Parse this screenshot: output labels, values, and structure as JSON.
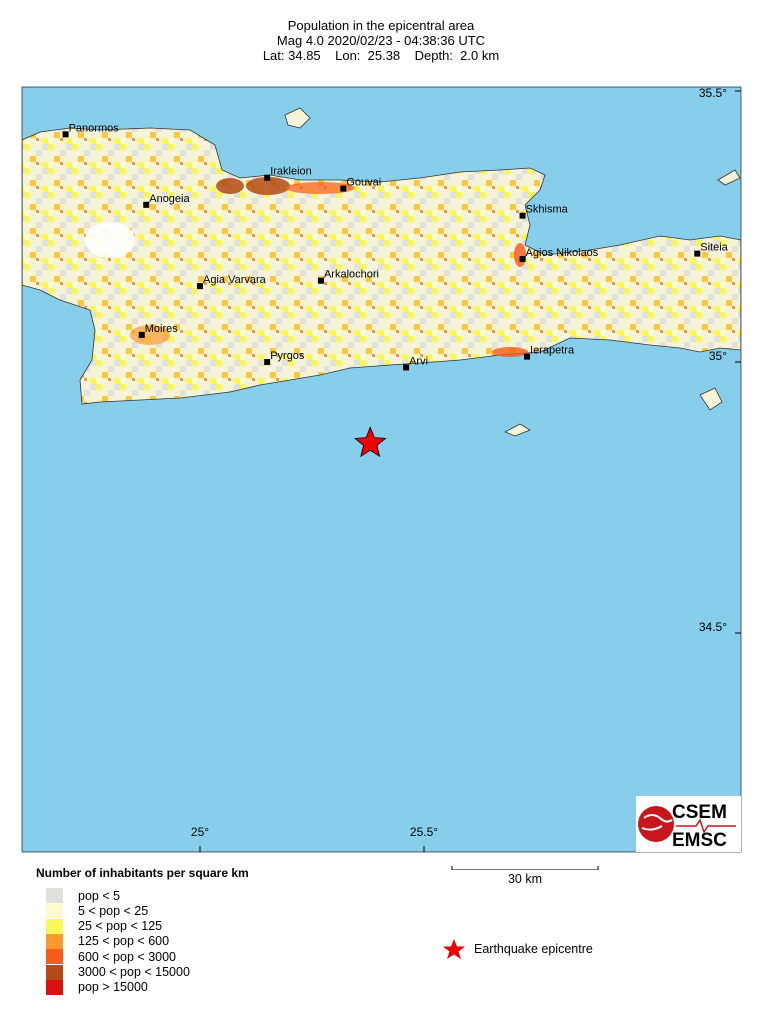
{
  "header": {
    "title": "Population in the epicentral area",
    "line2": "Mag 4.0  2020/02/23 - 04:38:36 UTC",
    "line3": "Lat: 34.85    Lon:  25.38    Depth:  2.0 km"
  },
  "map": {
    "sea_color": "#87ceeb",
    "lon_ticks": [
      {
        "value": 25.0,
        "label": "25°"
      },
      {
        "value": 25.5,
        "label": "25.5°"
      }
    ],
    "lat_ticks": [
      {
        "value": 35.5,
        "label": "35.5°"
      },
      {
        "value": 35.0,
        "label": "35°"
      },
      {
        "value": 34.5,
        "label": "34.5°"
      }
    ],
    "cities": [
      {
        "name": "Panormos",
        "lon": 24.7,
        "lat": 35.42
      },
      {
        "name": "Irakleion",
        "lon": 25.15,
        "lat": 35.34
      },
      {
        "name": "Gouvai",
        "lon": 25.32,
        "lat": 35.32
      },
      {
        "name": "Anogeia",
        "lon": 24.88,
        "lat": 35.29
      },
      {
        "name": "Skhisma",
        "lon": 25.72,
        "lat": 35.27
      },
      {
        "name": "Agios Nikolaos",
        "lon": 25.72,
        "lat": 35.19
      },
      {
        "name": "Siteia",
        "lon": 26.11,
        "lat": 35.2
      },
      {
        "name": "Agia Varvara",
        "lon": 25.0,
        "lat": 35.14
      },
      {
        "name": "Arkalochori",
        "lon": 25.27,
        "lat": 35.15
      },
      {
        "name": "Moires",
        "lon": 24.87,
        "lat": 35.05
      },
      {
        "name": "Pyrgos",
        "lon": 25.15,
        "lat": 35.0
      },
      {
        "name": "Arvi",
        "lon": 25.46,
        "lat": 34.99
      },
      {
        "name": "Ierapetra",
        "lon": 25.73,
        "lat": 35.01
      }
    ],
    "epicentre": {
      "lon": 25.38,
      "lat": 34.85,
      "color": "#ee0000"
    }
  },
  "legend": {
    "title": "Number of inhabitants per square km",
    "items": [
      {
        "label": "pop < 5",
        "color": "#e0e0dc"
      },
      {
        "label": "5 < pop < 25",
        "color": "#fbfbcf"
      },
      {
        "label": "25 < pop < 125",
        "color": "#fbf75a"
      },
      {
        "label": "125 < pop < 600",
        "color": "#f99a30"
      },
      {
        "label": "600 < pop < 3000",
        "color": "#f85a18"
      },
      {
        "label": "3000 < pop < 15000",
        "color": "#b34a18"
      },
      {
        "label": "pop > 15000",
        "color": "#d91010"
      }
    ]
  },
  "scale_bar": {
    "label": "30 km"
  },
  "epicentre_legend": {
    "label": "Earthquake epicentre"
  },
  "logo": {
    "text_top": "CSEM",
    "text_bottom": "EMSC"
  }
}
